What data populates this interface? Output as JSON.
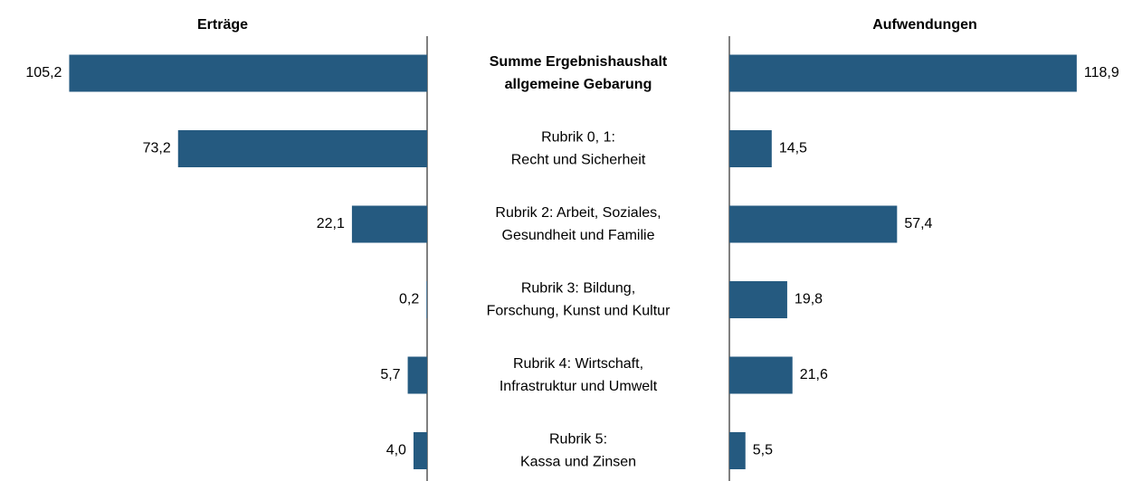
{
  "chart_data": {
    "type": "butterfly_bar",
    "categories": [
      [
        "Summe Ergebnishaushalt",
        "allgemeine Gebarung"
      ],
      [
        "Rubrik 0, 1:",
        "Recht und Sicherheit"
      ],
      [
        "Rubrik 2: Arbeit, Soziales,",
        "Gesundheit und Familie"
      ],
      [
        "Rubrik 3: Bildung,",
        "Forschung, Kunst und Kultur"
      ],
      [
        "Rubrik 4: Wirtschaft,",
        "Infrastruktur und Umwelt"
      ],
      [
        "Rubrik 5:",
        "Kassa und Zinsen"
      ]
    ],
    "series": [
      {
        "name": "Erträge",
        "color": "#255a80",
        "xlim": [
          0,
          125
        ],
        "values": [
          105.2,
          73.2,
          22.1,
          0.2,
          5.7,
          4.0
        ],
        "value_labels": [
          "105,2",
          "73,2",
          "22,1",
          "0,2",
          "5,7",
          "4,0"
        ]
      },
      {
        "name": "Aufwendungen",
        "color": "#255a80",
        "xlim": [
          0,
          140
        ],
        "values": [
          118.9,
          14.5,
          57.4,
          19.8,
          21.6,
          5.5
        ],
        "value_labels": [
          "118,9",
          "14,5",
          "57,4",
          "19,8",
          "21,6",
          "5,5"
        ]
      }
    ]
  }
}
